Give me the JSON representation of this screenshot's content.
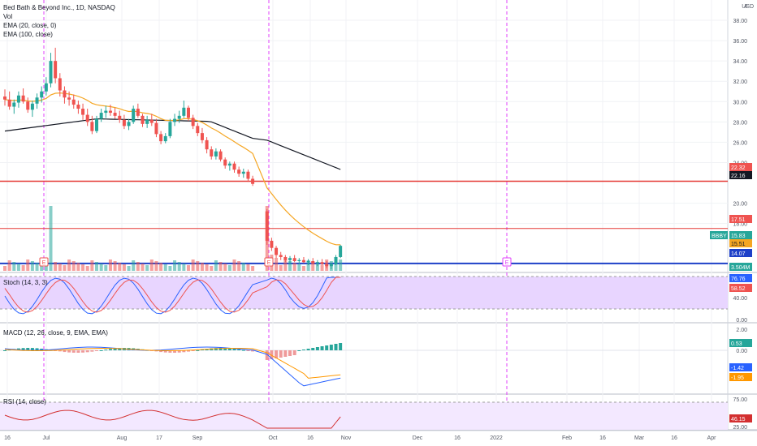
{
  "header": {
    "title_line": "Bed Bath & Beyond Inc., 1D, NASDAQ",
    "legend_vol": "Vol",
    "legend_ema20": "EMA (20, close, 0)",
    "legend_ema100": "EMA (100, close)",
    "currency": "USD"
  },
  "panels": {
    "stoch_label": "Stoch (14, 3, 3)",
    "macd_label": "MACD (12, 26, close, 9, EMA, EMA)",
    "rsi_label": "RSI (14, close)"
  },
  "colors": {
    "up": "#26a69a",
    "down": "#ef5350",
    "ema20": "#f5a623",
    "ema100": "#131722",
    "red_line": "#e53935",
    "blue_line": "#1e40c8",
    "event_line": "#e040fb",
    "stoch_band": "#e8d5ff",
    "rsi_band": "#f3e8ff"
  },
  "badges": {
    "price_22_32": "22.32",
    "price_22_16": "22.16",
    "price_17_51": "17.51",
    "symbol": "BBBY",
    "price_15_83": "15.83",
    "price_15_51": "15.51",
    "price_14_07": "14.07",
    "vol": "3.504M",
    "stoch_k": "76.76",
    "stoch_d": "58.52",
    "macd_hist": "0.53",
    "macd_line": "-1.42",
    "macd_signal": "-1.95",
    "rsi_val": "46.15"
  },
  "earnings_markers": [
    "E",
    "E",
    "E"
  ],
  "chart_data": {
    "type": "candlestick",
    "symbol": "BBBY",
    "timeframe": "1D",
    "exchange": "NASDAQ",
    "price_axis_ticks": [
      "38.00",
      "36.00",
      "34.00",
      "32.00",
      "30.00",
      "28.00",
      "26.00",
      "24.00",
      "20.00",
      "18.00"
    ],
    "price_axis_top": "4",
    "stoch_axis_ticks": [
      "40.00",
      "0.00"
    ],
    "macd_axis_ticks": [
      "2.00",
      "0.00"
    ],
    "rsi_axis_ticks": [
      "75.00",
      "25.00"
    ],
    "x_axis_ticks": [
      "16",
      "Jul",
      "Aug",
      "17",
      "Sep",
      "Oct",
      "16",
      "Nov",
      "Dec",
      "16",
      "2022",
      "Feb",
      "16",
      "Mar",
      "16",
      "Apr"
    ],
    "horizontal_levels": {
      "red_upper": 22.16,
      "red_lower": 17.51,
      "blue": 14.07
    },
    "ohlc_approx": [
      [
        30.5,
        31.2,
        29.6,
        30.2
      ],
      [
        30.2,
        31.0,
        29.2,
        29.5
      ],
      [
        29.5,
        30.2,
        28.8,
        29.9
      ],
      [
        29.9,
        31.0,
        29.4,
        30.6
      ],
      [
        30.6,
        31.3,
        29.8,
        30.0
      ],
      [
        30.0,
        30.4,
        28.9,
        29.2
      ],
      [
        29.2,
        30.1,
        28.5,
        29.8
      ],
      [
        29.8,
        30.8,
        29.3,
        30.4
      ],
      [
        30.4,
        31.5,
        29.9,
        31.0
      ],
      [
        31.0,
        32.4,
        30.6,
        31.8
      ],
      [
        31.8,
        34.8,
        31.4,
        34.0
      ],
      [
        34.0,
        35.3,
        31.8,
        32.3
      ],
      [
        32.3,
        32.8,
        30.5,
        31.1
      ],
      [
        31.1,
        31.5,
        29.8,
        30.4
      ],
      [
        30.4,
        31.0,
        29.6,
        30.2
      ],
      [
        30.2,
        30.7,
        29.3,
        29.7
      ],
      [
        29.7,
        30.1,
        28.8,
        29.3
      ],
      [
        29.3,
        29.8,
        28.2,
        28.7
      ],
      [
        28.7,
        29.3,
        27.6,
        28.0
      ],
      [
        28.0,
        28.6,
        26.8,
        27.1
      ],
      [
        27.1,
        28.6,
        26.9,
        28.3
      ],
      [
        28.3,
        29.3,
        28.0,
        28.9
      ],
      [
        28.9,
        29.6,
        28.4,
        29.1
      ],
      [
        29.1,
        29.7,
        28.6,
        28.9
      ],
      [
        28.9,
        29.4,
        28.3,
        28.6
      ],
      [
        28.6,
        29.1,
        27.9,
        28.2
      ],
      [
        28.2,
        28.7,
        27.3,
        27.6
      ],
      [
        27.6,
        28.3,
        27.2,
        28.0
      ],
      [
        28.0,
        29.6,
        27.8,
        29.3
      ],
      [
        29.3,
        29.8,
        28.4,
        28.6
      ],
      [
        28.6,
        28.8,
        27.5,
        27.8
      ],
      [
        27.8,
        28.6,
        27.4,
        28.2
      ],
      [
        28.2,
        28.8,
        27.6,
        27.9
      ],
      [
        27.9,
        28.3,
        26.5,
        26.8
      ],
      [
        26.8,
        27.1,
        25.8,
        26.1
      ],
      [
        26.1,
        26.9,
        25.9,
        26.6
      ],
      [
        26.6,
        28.3,
        26.4,
        28.0
      ],
      [
        28.0,
        28.8,
        27.6,
        28.3
      ],
      [
        28.3,
        29.1,
        27.9,
        28.6
      ],
      [
        28.6,
        30.1,
        28.4,
        29.4
      ],
      [
        29.4,
        29.6,
        28.1,
        28.4
      ],
      [
        28.4,
        28.7,
        27.3,
        27.6
      ],
      [
        27.6,
        27.9,
        26.6,
        26.9
      ],
      [
        26.9,
        27.4,
        25.9,
        26.2
      ],
      [
        26.2,
        26.5,
        24.9,
        25.3
      ],
      [
        25.3,
        25.6,
        24.3,
        24.6
      ],
      [
        24.6,
        25.4,
        24.3,
        25.1
      ],
      [
        25.1,
        25.3,
        24.1,
        24.3
      ],
      [
        24.3,
        24.5,
        23.4,
        23.7
      ],
      [
        23.7,
        24.1,
        23.2,
        23.9
      ],
      [
        23.9,
        24.1,
        23.0,
        23.3
      ],
      [
        23.3,
        23.6,
        22.6,
        22.9
      ],
      [
        22.9,
        23.4,
        22.5,
        23.1
      ],
      [
        23.1,
        23.3,
        22.1,
        22.4
      ],
      [
        22.4,
        22.7,
        21.7,
        21.9
      ],
      [
        19.2,
        19.4,
        15.9,
        16.3
      ],
      [
        16.3,
        16.6,
        15.3,
        15.6
      ],
      [
        15.6,
        15.8,
        14.6,
        14.9
      ],
      [
        14.9,
        15.2,
        14.4,
        14.7
      ],
      [
        14.7,
        14.9,
        14.2,
        14.4
      ],
      [
        14.4,
        14.8,
        14.1,
        14.6
      ],
      [
        14.6,
        14.9,
        14.2,
        14.3
      ],
      [
        14.3,
        14.6,
        14.0,
        14.4
      ],
      [
        14.4,
        14.7,
        14.1,
        14.2
      ],
      [
        14.2,
        14.5,
        13.9,
        14.3
      ],
      [
        14.3,
        14.6,
        14.0,
        14.1
      ],
      [
        14.1,
        14.4,
        13.8,
        14.2
      ],
      [
        14.2,
        14.5,
        13.9,
        14.0
      ],
      [
        14.0,
        14.3,
        13.6,
        13.8
      ],
      [
        13.8,
        14.1,
        13.5,
        14.0
      ],
      [
        14.0,
        14.9,
        13.9,
        14.7
      ],
      [
        14.7,
        15.9,
        14.6,
        15.8
      ]
    ],
    "ylim_price": [
      13.5,
      40.0
    ]
  }
}
